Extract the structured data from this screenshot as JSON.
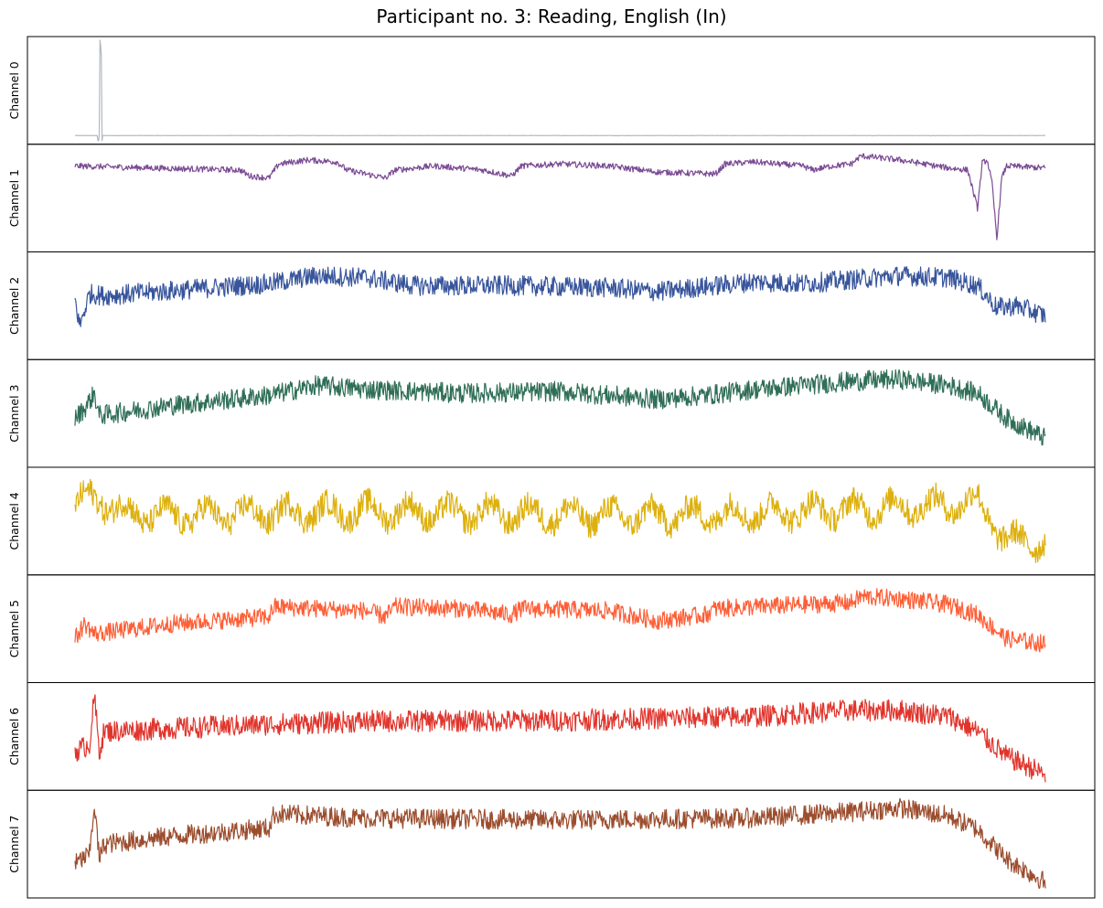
{
  "chart_data": {
    "type": "line",
    "title": "Participant no. 3: Reading, English (In)",
    "xlabel": "",
    "ylabel": "",
    "x_ticks": "none",
    "y_ticks": "none",
    "grid": false,
    "legend": "none",
    "x_range": [
      0,
      1
    ],
    "series": [
      {
        "name": "Channel 0",
        "color": "#b2b8c2",
        "noise": 0.004,
        "profile": [
          [
            0,
            0.05
          ],
          [
            0.015,
            0.05
          ],
          [
            0.025,
            0.05
          ],
          [
            0.0255,
            0.97
          ],
          [
            0.027,
            0.97
          ],
          [
            0.0275,
            0.05
          ],
          [
            0.2,
            0.05
          ],
          [
            0.5,
            0.05
          ],
          [
            0.8,
            0.05
          ],
          [
            1,
            0.05
          ]
        ],
        "bursts": [
          [
            0.0235,
            0.0285,
            0.55
          ]
        ]
      },
      {
        "name": "Channel 1",
        "color": "#7b4b94",
        "noise": 0.06,
        "profile": [
          [
            0,
            0.82
          ],
          [
            0.08,
            0.8
          ],
          [
            0.17,
            0.78
          ],
          [
            0.18,
            0.72
          ],
          [
            0.2,
            0.7
          ],
          [
            0.21,
            0.84
          ],
          [
            0.24,
            0.88
          ],
          [
            0.27,
            0.86
          ],
          [
            0.28,
            0.78
          ],
          [
            0.3,
            0.74
          ],
          [
            0.32,
            0.7
          ],
          [
            0.33,
            0.78
          ],
          [
            0.37,
            0.82
          ],
          [
            0.42,
            0.78
          ],
          [
            0.45,
            0.72
          ],
          [
            0.46,
            0.82
          ],
          [
            0.5,
            0.84
          ],
          [
            0.55,
            0.82
          ],
          [
            0.6,
            0.76
          ],
          [
            0.66,
            0.74
          ],
          [
            0.67,
            0.84
          ],
          [
            0.7,
            0.86
          ],
          [
            0.75,
            0.82
          ],
          [
            0.76,
            0.78
          ],
          [
            0.78,
            0.82
          ],
          [
            0.8,
            0.84
          ],
          [
            0.81,
            0.92
          ],
          [
            0.85,
            0.88
          ],
          [
            0.9,
            0.8
          ],
          [
            0.92,
            0.78
          ],
          [
            0.93,
            0.4
          ],
          [
            0.935,
            0.85
          ],
          [
            0.94,
            0.88
          ],
          [
            0.945,
            0.65
          ],
          [
            0.95,
            0.1
          ],
          [
            0.955,
            0.7
          ],
          [
            0.96,
            0.82
          ],
          [
            1,
            0.8
          ]
        ]
      },
      {
        "name": "Channel 2",
        "color": "#38559c",
        "noise": 0.2,
        "profile": [
          [
            0,
            0.55
          ],
          [
            0.005,
            0.3
          ],
          [
            0.015,
            0.62
          ],
          [
            0.03,
            0.6
          ],
          [
            0.1,
            0.65
          ],
          [
            0.2,
            0.72
          ],
          [
            0.25,
            0.8
          ],
          [
            0.3,
            0.78
          ],
          [
            0.35,
            0.7
          ],
          [
            0.45,
            0.7
          ],
          [
            0.55,
            0.68
          ],
          [
            0.6,
            0.64
          ],
          [
            0.7,
            0.74
          ],
          [
            0.75,
            0.72
          ],
          [
            0.8,
            0.76
          ],
          [
            0.85,
            0.8
          ],
          [
            0.9,
            0.78
          ],
          [
            0.93,
            0.7
          ],
          [
            0.95,
            0.48
          ],
          [
            0.97,
            0.5
          ],
          [
            1,
            0.4
          ]
        ]
      },
      {
        "name": "Channel 3",
        "color": "#2f6e57",
        "noise": 0.2,
        "profile": [
          [
            0,
            0.45
          ],
          [
            0.01,
            0.55
          ],
          [
            0.02,
            0.7
          ],
          [
            0.025,
            0.48
          ],
          [
            0.1,
            0.58
          ],
          [
            0.2,
            0.68
          ],
          [
            0.25,
            0.78
          ],
          [
            0.3,
            0.74
          ],
          [
            0.4,
            0.7
          ],
          [
            0.5,
            0.72
          ],
          [
            0.6,
            0.64
          ],
          [
            0.65,
            0.68
          ],
          [
            0.7,
            0.74
          ],
          [
            0.8,
            0.82
          ],
          [
            0.85,
            0.84
          ],
          [
            0.9,
            0.78
          ],
          [
            0.93,
            0.7
          ],
          [
            0.96,
            0.45
          ],
          [
            1,
            0.25
          ]
        ]
      },
      {
        "name": "Channel 4",
        "color": "#ddb00d",
        "noise": 0.26,
        "wave_amp": 0.1,
        "wave_cycles": 24,
        "profile": [
          [
            0,
            0.65
          ],
          [
            0.02,
            0.75
          ],
          [
            0.05,
            0.58
          ],
          [
            0.1,
            0.55
          ],
          [
            0.2,
            0.58
          ],
          [
            0.3,
            0.6
          ],
          [
            0.4,
            0.58
          ],
          [
            0.5,
            0.56
          ],
          [
            0.6,
            0.55
          ],
          [
            0.7,
            0.58
          ],
          [
            0.8,
            0.62
          ],
          [
            0.9,
            0.66
          ],
          [
            0.93,
            0.7
          ],
          [
            0.96,
            0.3
          ],
          [
            1,
            0.3
          ]
        ]
      },
      {
        "name": "Channel 5",
        "color": "#fe5e36",
        "noise": 0.18,
        "profile": [
          [
            0,
            0.4
          ],
          [
            0.01,
            0.55
          ],
          [
            0.02,
            0.45
          ],
          [
            0.1,
            0.55
          ],
          [
            0.2,
            0.62
          ],
          [
            0.205,
            0.72
          ],
          [
            0.3,
            0.68
          ],
          [
            0.32,
            0.62
          ],
          [
            0.33,
            0.72
          ],
          [
            0.4,
            0.7
          ],
          [
            0.45,
            0.64
          ],
          [
            0.46,
            0.7
          ],
          [
            0.55,
            0.68
          ],
          [
            0.6,
            0.58
          ],
          [
            0.65,
            0.64
          ],
          [
            0.66,
            0.7
          ],
          [
            0.75,
            0.74
          ],
          [
            0.8,
            0.76
          ],
          [
            0.81,
            0.82
          ],
          [
            0.85,
            0.8
          ],
          [
            0.9,
            0.74
          ],
          [
            0.93,
            0.64
          ],
          [
            0.96,
            0.4
          ],
          [
            1,
            0.35
          ]
        ]
      },
      {
        "name": "Channel 6",
        "color": "#e0352d",
        "noise": 0.22,
        "profile": [
          [
            0,
            0.35
          ],
          [
            0.015,
            0.42
          ],
          [
            0.02,
            0.9
          ],
          [
            0.025,
            0.35
          ],
          [
            0.03,
            0.55
          ],
          [
            0.1,
            0.58
          ],
          [
            0.2,
            0.62
          ],
          [
            0.3,
            0.65
          ],
          [
            0.5,
            0.66
          ],
          [
            0.7,
            0.7
          ],
          [
            0.8,
            0.76
          ],
          [
            0.85,
            0.76
          ],
          [
            0.9,
            0.7
          ],
          [
            0.93,
            0.55
          ],
          [
            0.96,
            0.3
          ],
          [
            1,
            0.12
          ]
        ]
      },
      {
        "name": "Channel 7",
        "color": "#9b4d2e",
        "noise": 0.2,
        "profile": [
          [
            0,
            0.3
          ],
          [
            0.015,
            0.4
          ],
          [
            0.02,
            0.9
          ],
          [
            0.025,
            0.35
          ],
          [
            0.03,
            0.5
          ],
          [
            0.1,
            0.58
          ],
          [
            0.2,
            0.66
          ],
          [
            0.205,
            0.8
          ],
          [
            0.3,
            0.76
          ],
          [
            0.5,
            0.74
          ],
          [
            0.7,
            0.76
          ],
          [
            0.8,
            0.82
          ],
          [
            0.85,
            0.86
          ],
          [
            0.9,
            0.78
          ],
          [
            0.93,
            0.65
          ],
          [
            0.96,
            0.35
          ],
          [
            1,
            0.12
          ]
        ]
      }
    ]
  }
}
